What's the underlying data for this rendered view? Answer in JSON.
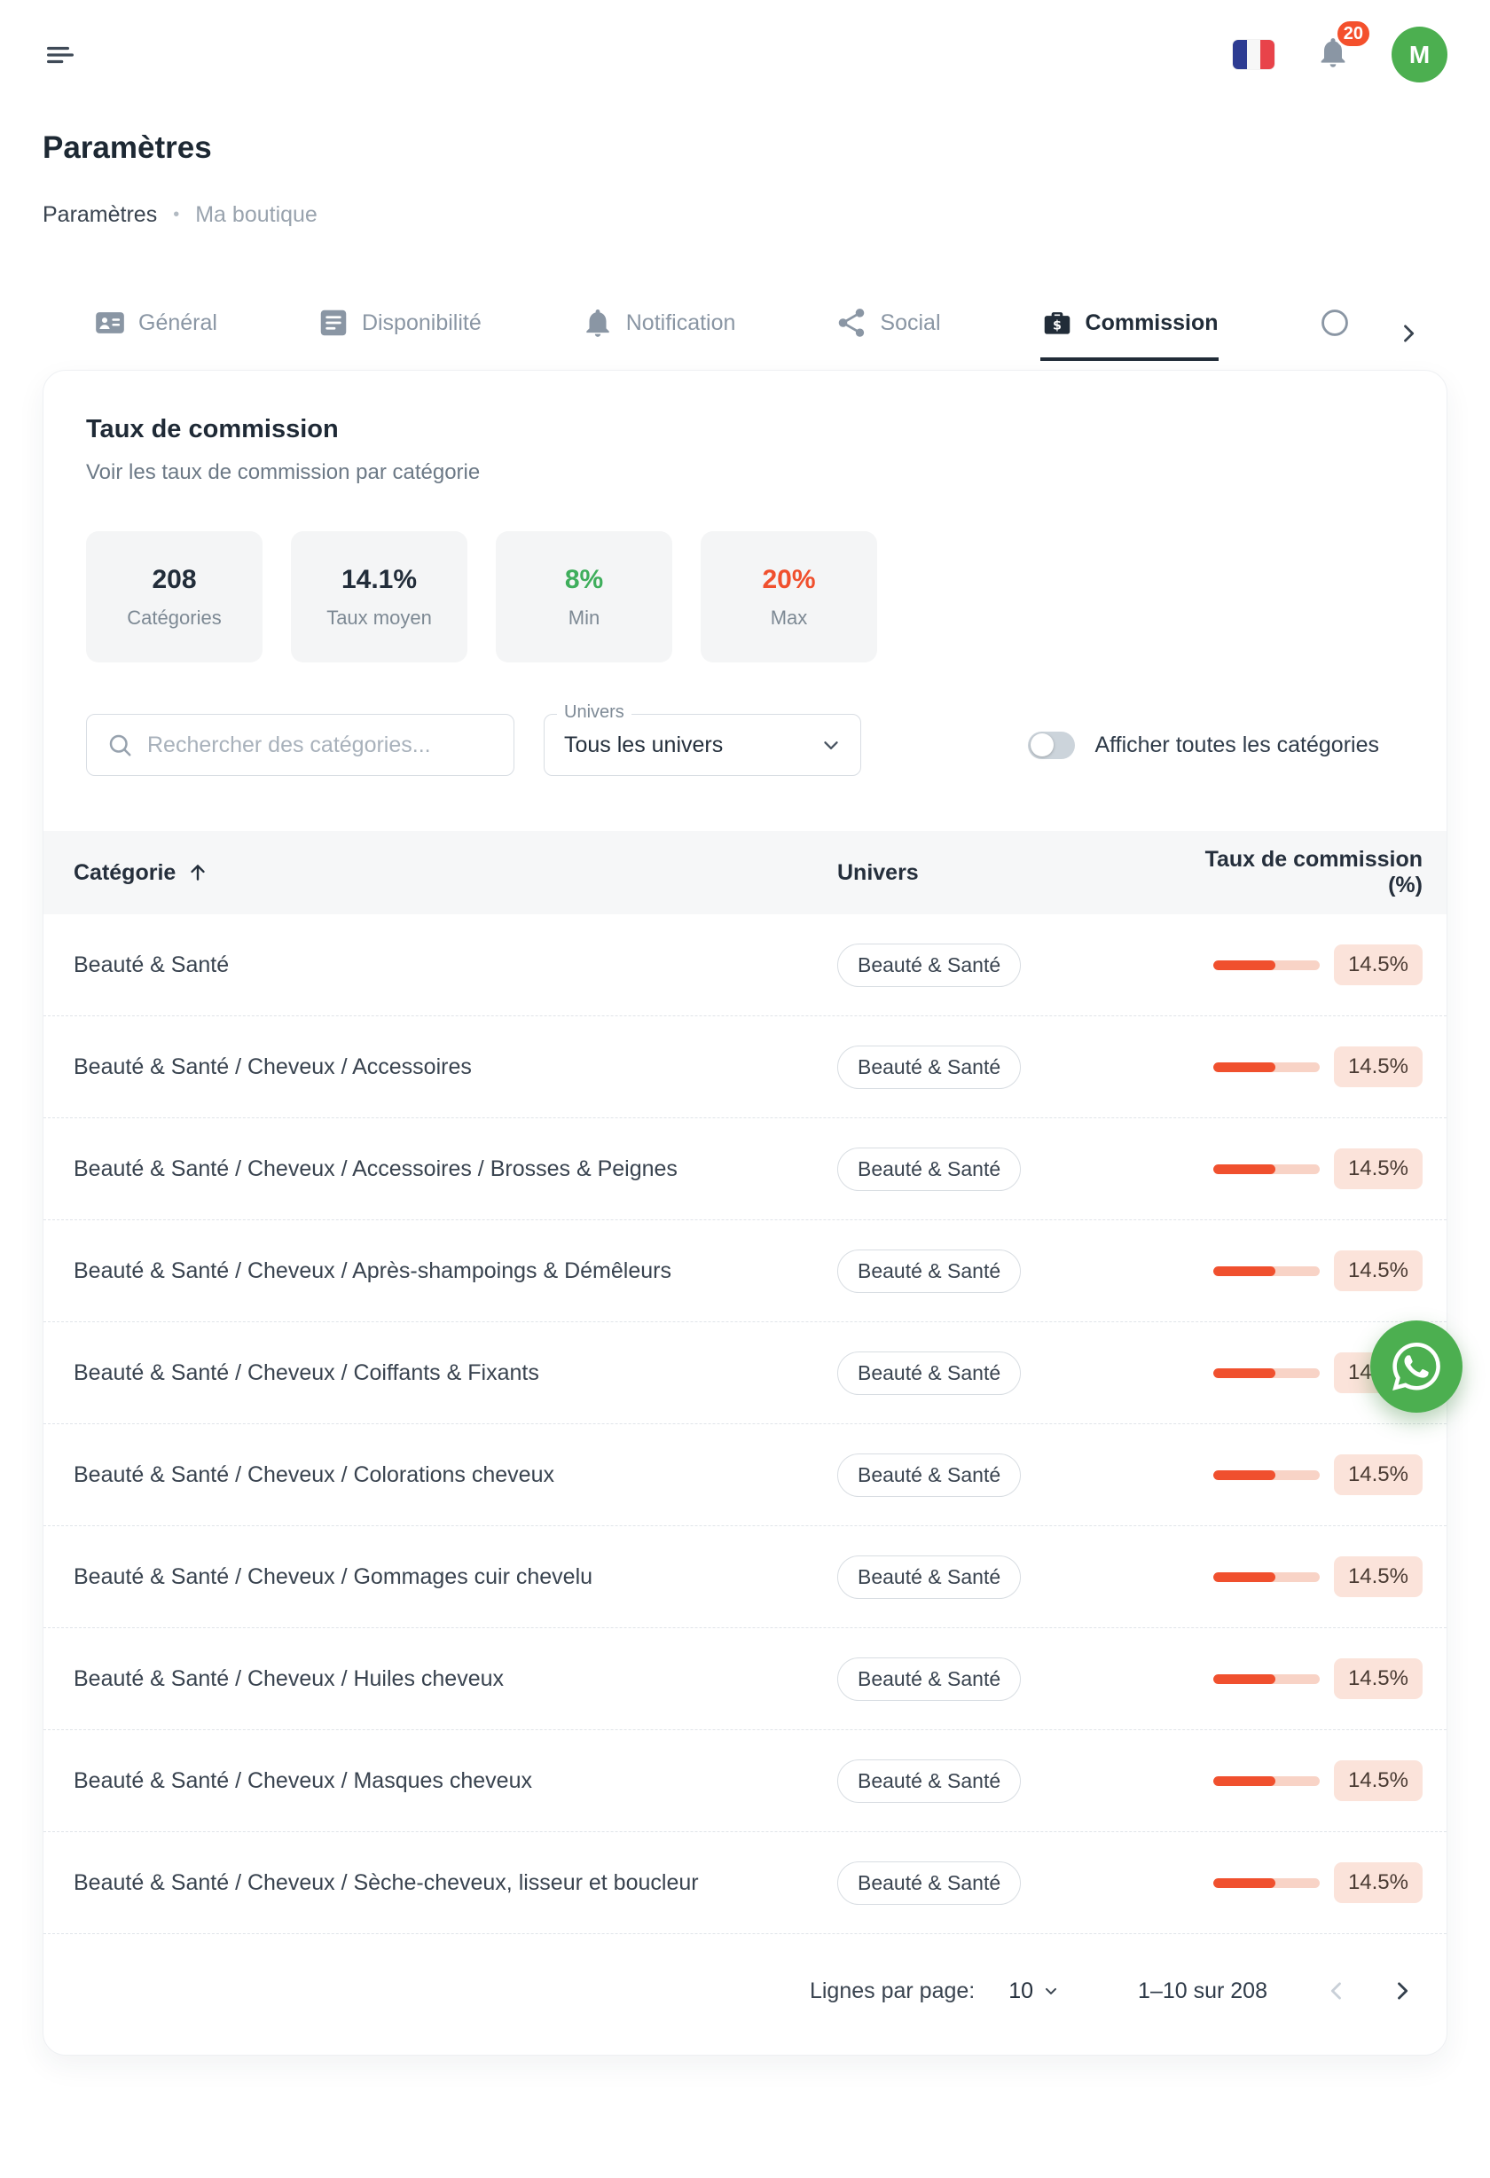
{
  "header": {
    "notification_count": "20",
    "avatar_initial": "M"
  },
  "page": {
    "title": "Paramètres",
    "breadcrumb": {
      "current": "Paramètres",
      "separator": "•",
      "parent": "Ma boutique"
    }
  },
  "tabs": [
    {
      "label": "Général",
      "active": false
    },
    {
      "label": "Disponibilité",
      "active": false
    },
    {
      "label": "Notification",
      "active": false
    },
    {
      "label": "Social",
      "active": false
    },
    {
      "label": "Commission",
      "active": true
    }
  ],
  "commission_card": {
    "title": "Taux de commission",
    "subtitle": "Voir les taux de commission par catégorie",
    "stats": [
      {
        "value": "208",
        "label": "Catégories",
        "color": "#222d3a"
      },
      {
        "value": "14.1%",
        "label": "Taux moyen",
        "color": "#222d3a"
      },
      {
        "value": "8%",
        "label": "Min",
        "color": "#3fae5c"
      },
      {
        "value": "20%",
        "label": "Max",
        "color": "#f0502e"
      }
    ],
    "search": {
      "placeholder": "Rechercher des catégories..."
    },
    "univers_filter": {
      "label": "Univers",
      "value": "Tous les univers"
    },
    "toggle_label": "Afficher toutes les catégories",
    "toggle_state": "off"
  },
  "table": {
    "columns": {
      "category": "Catégorie",
      "univers": "Univers",
      "rate": "Taux de commission (%)"
    },
    "sort": "category-ascending",
    "rows": [
      {
        "category": "Beauté & Santé",
        "univers": "Beauté & Santé",
        "rate": "14.5%",
        "fill_percent": 58
      },
      {
        "category": "Beauté & Santé / Cheveux / Accessoires",
        "univers": "Beauté & Santé",
        "rate": "14.5%",
        "fill_percent": 58
      },
      {
        "category": "Beauté & Santé / Cheveux / Accessoires / Brosses & Peignes",
        "univers": "Beauté & Santé",
        "rate": "14.5%",
        "fill_percent": 58
      },
      {
        "category": "Beauté & Santé / Cheveux / Après-shampoings & Démêleurs",
        "univers": "Beauté & Santé",
        "rate": "14.5%",
        "fill_percent": 58
      },
      {
        "category": "Beauté & Santé / Cheveux / Coiffants & Fixants",
        "univers": "Beauté & Santé",
        "rate": "14.5%",
        "fill_percent": 58
      },
      {
        "category": "Beauté & Santé / Cheveux / Colorations cheveux",
        "univers": "Beauté & Santé",
        "rate": "14.5%",
        "fill_percent": 58
      },
      {
        "category": "Beauté & Santé / Cheveux / Gommages cuir chevelu",
        "univers": "Beauté & Santé",
        "rate": "14.5%",
        "fill_percent": 58
      },
      {
        "category": "Beauté & Santé / Cheveux / Huiles cheveux",
        "univers": "Beauté & Santé",
        "rate": "14.5%",
        "fill_percent": 58
      },
      {
        "category": "Beauté & Santé / Cheveux / Masques cheveux",
        "univers": "Beauté & Santé",
        "rate": "14.5%",
        "fill_percent": 58
      },
      {
        "category": "Beauté & Santé / Cheveux / Sèche-cheveux, lisseur et boucleur",
        "univers": "Beauté & Santé",
        "rate": "14.5%",
        "fill_percent": 58
      }
    ]
  },
  "pagination": {
    "rows_per_page_label": "Lignes par page:",
    "rows_per_page_value": "10",
    "range_label": "1–10 sur 208"
  },
  "icons": [
    "menu-icon",
    "french-flag-icon",
    "bell-icon",
    "id-card-icon",
    "calendar-list-icon",
    "share-icon",
    "briefcase-dollar-icon",
    "circle-icon",
    "chevron-right-icon",
    "search-icon",
    "chevron-down-icon",
    "sort-ascending-icon",
    "chevron-left-icon",
    "whatsapp-icon"
  ],
  "theme": {
    "accent": "#f0502e",
    "accent-soft": "#fbe3da",
    "track": "#f8d3c6",
    "green": "#3fae5c",
    "brand-green": "#4caf50"
  }
}
